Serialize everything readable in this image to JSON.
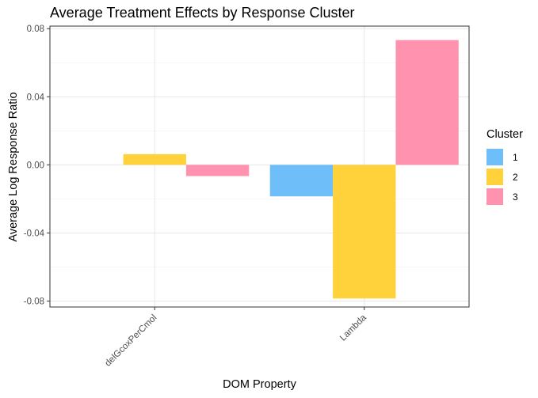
{
  "chart_data": {
    "type": "bar",
    "title": "Average Treatment Effects by Response Cluster",
    "xlabel": "DOM Property",
    "ylabel": "Average Log Response Ratio",
    "categories": [
      "delGcoxPerCmol",
      "Lambda"
    ],
    "series": [
      {
        "name": "1",
        "color": "#6EBEFA",
        "values": [
          null,
          -0.0185
        ]
      },
      {
        "name": "2",
        "color": "#FFD23C",
        "values": [
          0.0063,
          -0.0785
        ]
      },
      {
        "name": "3",
        "color": "#FF92AE",
        "values": [
          -0.0066,
          0.0733
        ]
      }
    ],
    "ylim": [
      -0.0835,
      0.0815
    ],
    "yticks": [
      0.08,
      0.04,
      0.0,
      -0.04,
      -0.08
    ],
    "ytick_labels": [
      "0.08",
      "0.04",
      "0.00",
      "-0.04",
      "-0.08"
    ],
    "grid": true,
    "legend": {
      "title": "Cluster",
      "position": "right"
    }
  }
}
